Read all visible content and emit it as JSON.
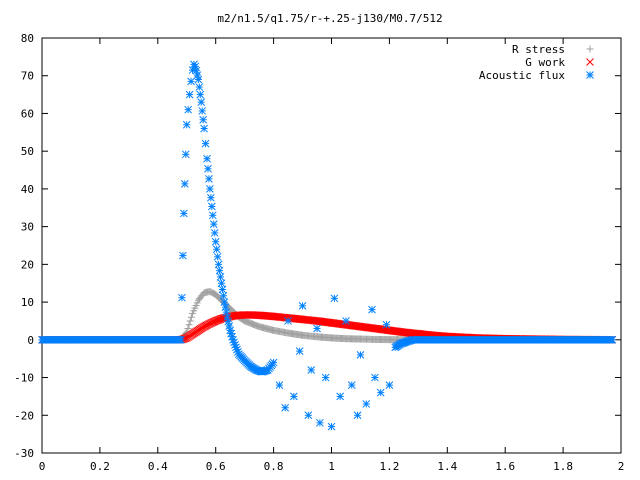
{
  "chart_data": {
    "type": "scatter",
    "title": "m2/n1.5/q1.75/r-+.25-j130/M0.7/512",
    "xlabel": "",
    "ylabel": "",
    "xlim": [
      0,
      2
    ],
    "ylim": [
      -30,
      80
    ],
    "xticks": [
      0,
      0.2,
      0.4,
      0.6,
      0.8,
      1,
      1.2,
      1.4,
      1.6,
      1.8,
      2
    ],
    "yticks": [
      -30,
      -20,
      -10,
      0,
      10,
      20,
      30,
      40,
      50,
      60,
      70,
      80
    ],
    "xtick_labels": [
      "0",
      "0.2",
      "0.4",
      "0.6",
      "0.8",
      "1",
      "1.2",
      "1.4",
      "1.6",
      "1.8",
      "2"
    ],
    "ytick_labels": [
      "-30",
      "-20",
      "-10",
      "0",
      "10",
      "20",
      "30",
      "40",
      "50",
      "60",
      "70",
      "80"
    ],
    "grid": false,
    "legend_position": "top-right",
    "series": [
      {
        "name": "R stress",
        "marker": "plus",
        "color": "#a0a0a0",
        "x": [
          0,
          0.48,
          0.5,
          0.52,
          0.54,
          0.56,
          0.58,
          0.6,
          0.62,
          0.64,
          0.66,
          0.68,
          0.7,
          0.75,
          0.8,
          0.85,
          0.9,
          0.95,
          1.0,
          1.05,
          1.1,
          1.15,
          1.2,
          1.3,
          1.4,
          1.5,
          1.6,
          1.7,
          1.8,
          1.9,
          1.97
        ],
        "y": [
          0,
          0,
          2,
          7,
          10.5,
          12.5,
          12.8,
          12,
          10.5,
          9,
          7.5,
          6,
          5,
          3.5,
          2.5,
          1.8,
          1.2,
          0.8,
          0.5,
          0.3,
          0.2,
          0.1,
          0.05,
          0,
          0,
          0,
          0,
          0,
          0,
          0,
          0
        ]
      },
      {
        "name": "G work",
        "marker": "cross",
        "color": "#ff0000",
        "x": [
          0,
          0.48,
          0.5,
          0.52,
          0.54,
          0.56,
          0.58,
          0.6,
          0.62,
          0.64,
          0.66,
          0.68,
          0.7,
          0.72,
          0.75,
          0.8,
          0.85,
          0.9,
          0.95,
          1.0,
          1.05,
          1.1,
          1.15,
          1.2,
          1.25,
          1.3,
          1.35,
          1.4,
          1.45,
          1.5,
          1.6,
          1.7,
          1.8,
          1.9,
          1.97
        ],
        "y": [
          0,
          0,
          0.5,
          1.5,
          2.5,
          3.5,
          4.3,
          5,
          5.6,
          6,
          6.3,
          6.5,
          6.6,
          6.6,
          6.5,
          6.2,
          5.8,
          5.4,
          5,
          4.5,
          4,
          3.5,
          3,
          2.5,
          2,
          1.6,
          1.2,
          0.9,
          0.7,
          0.5,
          0.3,
          0.2,
          0.1,
          0.05,
          0
        ]
      },
      {
        "name": "Acoustic flux",
        "marker": "star",
        "color": "#0080ff",
        "x": [
          0,
          0.48,
          0.49,
          0.5,
          0.505,
          0.51,
          0.515,
          0.52,
          0.525,
          0.53,
          0.54,
          0.55,
          0.56,
          0.57,
          0.58,
          0.59,
          0.6,
          0.61,
          0.62,
          0.63,
          0.64,
          0.65,
          0.66,
          0.67,
          0.68,
          0.7,
          0.72,
          0.74,
          0.76,
          0.78,
          0.8,
          0.82,
          0.84,
          0.85,
          0.87,
          0.89,
          0.9,
          0.92,
          0.93,
          0.95,
          0.96,
          0.98,
          1.0,
          1.01,
          1.03,
          1.05,
          1.07,
          1.09,
          1.1,
          1.12,
          1.14,
          1.15,
          1.17,
          1.19,
          1.2,
          1.22,
          1.24,
          1.26,
          1.28,
          1.3,
          1.35,
          1.4,
          1.5,
          1.6,
          1.7,
          1.8,
          1.9,
          1.97
        ],
        "y": [
          0,
          0,
          33.5,
          57,
          61,
          65,
          68.5,
          71.5,
          73,
          72.5,
          69,
          63,
          56,
          48,
          40,
          33,
          26,
          20,
          15,
          10,
          6,
          2.5,
          0,
          -2,
          -3.8,
          -5.5,
          -7,
          -8,
          -8.5,
          -8,
          -6,
          -12,
          -18,
          5,
          -15,
          -3,
          9,
          -20,
          -8,
          3,
          -22,
          -10,
          -23,
          11,
          -15,
          5,
          -12,
          -20,
          -4,
          -17,
          8,
          -10,
          -14,
          4,
          -12,
          -2,
          -1,
          -0.5,
          0,
          0,
          0,
          0,
          0,
          0,
          0,
          0,
          0,
          0
        ]
      }
    ]
  }
}
